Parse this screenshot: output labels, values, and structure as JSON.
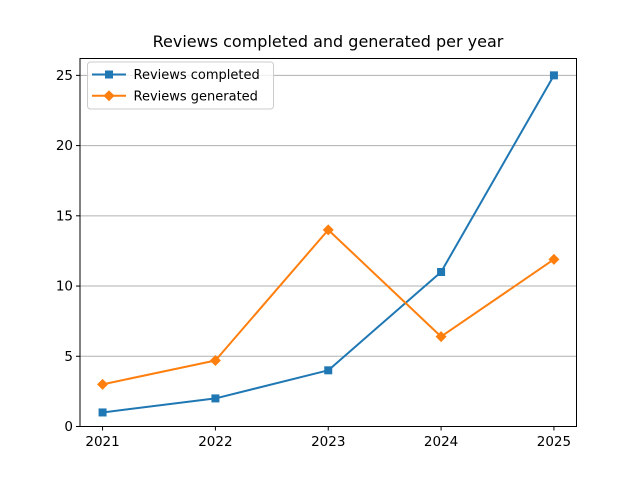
{
  "chart_data": {
    "type": "line",
    "title": "Reviews completed and generated per year",
    "categories": [
      2021,
      2022,
      2023,
      2024,
      2025
    ],
    "series": [
      {
        "name": "Reviews completed",
        "color": "#1f77b4",
        "marker": "square",
        "values": [
          1,
          2,
          4,
          11,
          25
        ]
      },
      {
        "name": "Reviews generated",
        "color": "#ff7f0e",
        "marker": "diamond",
        "values": [
          3,
          4.7,
          14,
          6.4,
          11.9
        ]
      }
    ],
    "xlabel": "",
    "ylabel": "",
    "xlim": [
      2020.8,
      2025.2
    ],
    "ylim": [
      0,
      26.2
    ],
    "y_ticks": [
      0,
      5,
      10,
      15,
      20,
      25
    ],
    "grid": "horizontal",
    "grid_color": "#b0b0b0",
    "spine_color": "#000000",
    "background": "#ffffff",
    "legend_position": "upper-left"
  }
}
